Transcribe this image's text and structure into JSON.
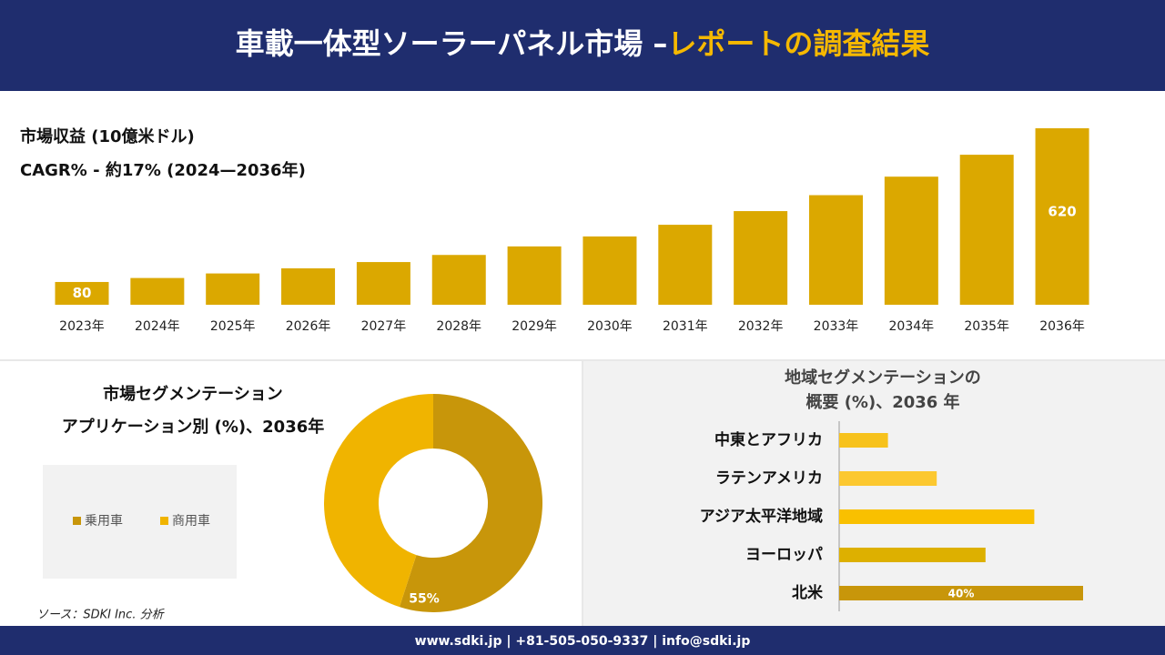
{
  "header": {
    "title_main": "車載一体型ソーラーパネル市場 –",
    "title_accent": "レポートの調査結果"
  },
  "chart_data": [
    {
      "type": "bar",
      "title": "市場収益 (10億米ドル)",
      "subtitle": "CAGR% - 約17% (2024—2036年)",
      "categories": [
        "2023年",
        "2024年",
        "2025年",
        "2026年",
        "2027年",
        "2028年",
        "2029年",
        "2030年",
        "2031年",
        "2032年",
        "2033年",
        "2034年",
        "2035年",
        "2036年"
      ],
      "values": [
        80,
        94,
        110,
        128,
        150,
        175,
        205,
        240,
        281,
        329,
        385,
        450,
        527,
        620
      ],
      "value_labels": [
        "80",
        null,
        null,
        null,
        null,
        null,
        null,
        null,
        null,
        null,
        null,
        null,
        null,
        "620"
      ],
      "color": "#dba800",
      "ylim": [
        0,
        620
      ]
    },
    {
      "type": "pie",
      "title": [
        "市場セグメンテーション",
        "アプリケーション別 (%)、2036年"
      ],
      "categories": [
        "乗用車",
        "商用車"
      ],
      "values": [
        55,
        45
      ],
      "value_labels": [
        "55%",
        null
      ],
      "colors": [
        "#c8960a",
        "#f0b400"
      ],
      "donut": true
    },
    {
      "type": "barh",
      "title": [
        "地域セグメンテーションの",
        "概要 (%)、2036 年"
      ],
      "categories": [
        "中東とアフリカ",
        "ラテンアメリカ",
        "アジア太平洋地域",
        "ヨーロッパ",
        "北米"
      ],
      "values": [
        8,
        16,
        32,
        24,
        40
      ],
      "value_labels": [
        null,
        null,
        null,
        null,
        "40%"
      ],
      "colors": [
        "#f7c21c",
        "#fcc830",
        "#f9c000",
        "#ddb000",
        "#c8960a"
      ],
      "xlim": [
        0,
        50
      ]
    }
  ],
  "source": "ソース：SDKI Inc. 分析",
  "footer": "www.sdki.jp | +81-505-050-9337 | info@sdki.jp"
}
